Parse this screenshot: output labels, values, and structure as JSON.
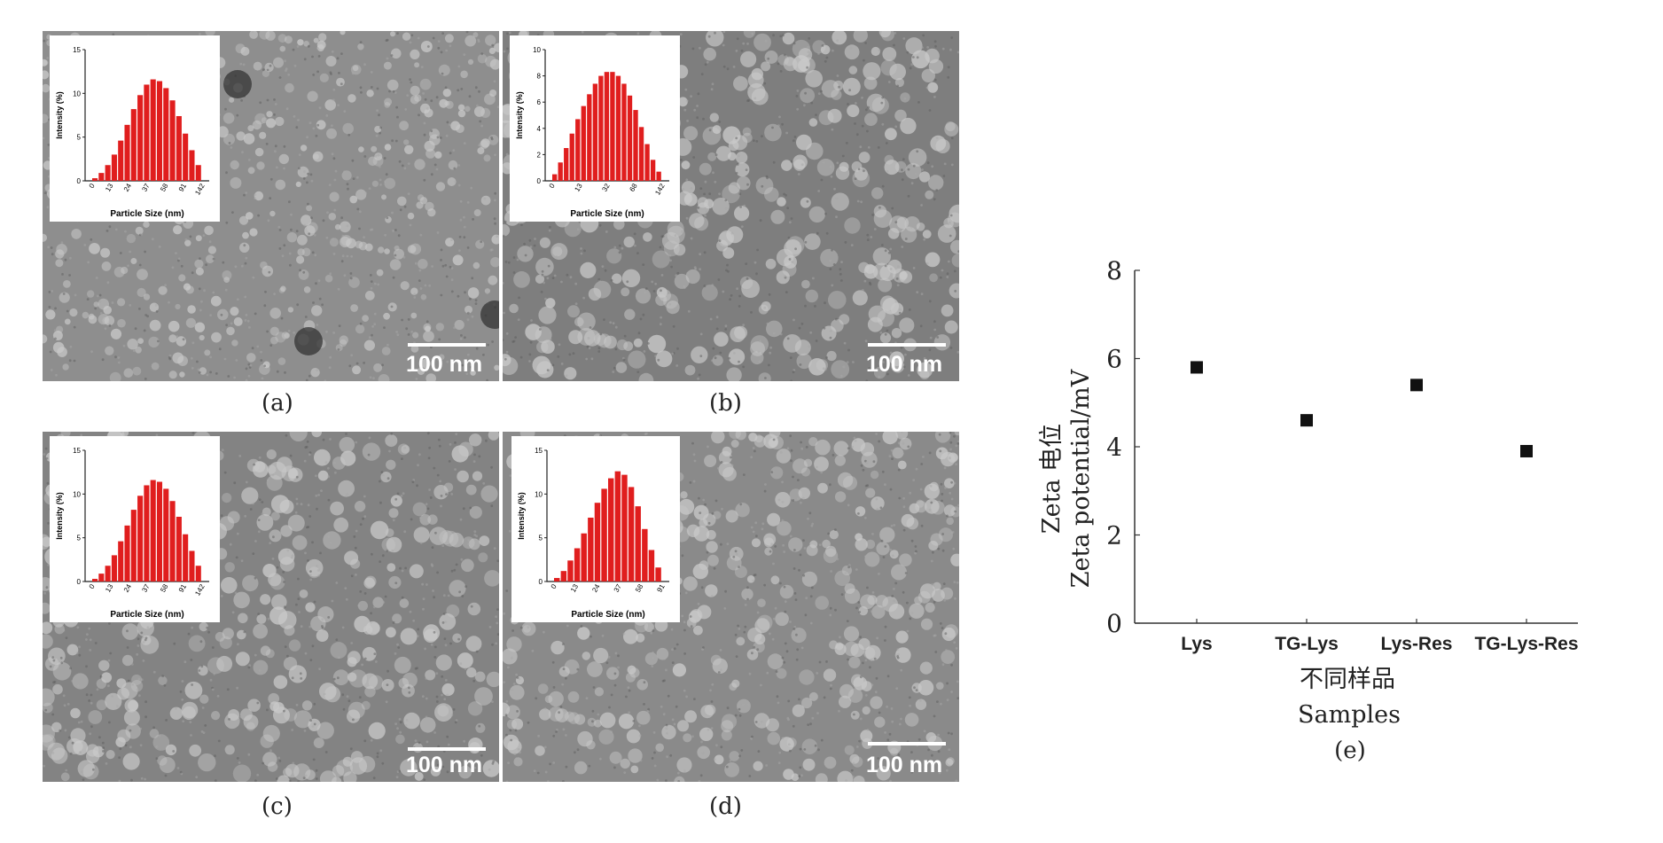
{
  "panels": [
    {
      "id": "a",
      "caption": "(a)",
      "scale_label": "100 nm",
      "inset": {
        "ylabel": "Intensity (%)",
        "xlabel": "Particle Size (nm)",
        "yticks": [
          "0",
          "5",
          "10",
          "15"
        ],
        "xticks": [
          "0",
          "13",
          "24",
          "37",
          "58",
          "91",
          "142"
        ],
        "ymax": 15,
        "values": [
          0.3,
          0.9,
          1.8,
          3.0,
          4.6,
          6.4,
          8.2,
          9.8,
          11.0,
          11.6,
          11.4,
          10.6,
          9.2,
          7.4,
          5.4,
          3.5,
          1.8
        ]
      }
    },
    {
      "id": "b",
      "caption": "(b)",
      "scale_label": "100 nm",
      "inset": {
        "ylabel": "Intensity (%)",
        "xlabel": "Particle Size (nm)",
        "yticks": [
          "0",
          "2",
          "4",
          "6",
          "8",
          "10"
        ],
        "xticks": [
          "0",
          "13",
          "32",
          "68",
          "142"
        ],
        "ymax": 10,
        "values": [
          0.5,
          1.4,
          2.5,
          3.6,
          4.7,
          5.7,
          6.6,
          7.4,
          8.0,
          8.3,
          8.3,
          8.0,
          7.4,
          6.5,
          5.4,
          4.1,
          2.8,
          1.6,
          0.7
        ]
      }
    },
    {
      "id": "c",
      "caption": "(c)",
      "scale_label": "100 nm",
      "inset": {
        "ylabel": "Intensity (%)",
        "xlabel": "Particle Size (nm)",
        "yticks": [
          "0",
          "5",
          "10",
          "15"
        ],
        "xticks": [
          "0",
          "13",
          "24",
          "37",
          "58",
          "91",
          "142"
        ],
        "ymax": 15,
        "values": [
          0.3,
          0.9,
          1.8,
          3.0,
          4.6,
          6.4,
          8.2,
          9.8,
          11.0,
          11.6,
          11.4,
          10.6,
          9.2,
          7.4,
          5.4,
          3.5,
          1.8
        ]
      }
    },
    {
      "id": "d",
      "caption": "(d)",
      "scale_label": "100 nm",
      "inset": {
        "ylabel": "Intensity (%)",
        "xlabel": "Particle Size (nm)",
        "yticks": [
          "0",
          "5",
          "10",
          "15"
        ],
        "xticks": [
          "0",
          "13",
          "24",
          "37",
          "58",
          "91"
        ],
        "ymax": 15,
        "values": [
          0.4,
          1.2,
          2.4,
          3.8,
          5.5,
          7.3,
          9.0,
          10.6,
          11.8,
          12.6,
          12.2,
          10.8,
          8.6,
          6.0,
          3.6,
          1.6
        ]
      }
    }
  ],
  "chart_data": {
    "type": "scatter",
    "categories": [
      "Lys",
      "TG-Lys",
      "Lys-Res",
      "TG-Lys-Res"
    ],
    "values": [
      5.8,
      4.6,
      5.4,
      3.9
    ],
    "ylim": [
      0,
      8
    ],
    "yticks": [
      0,
      2,
      4,
      6,
      8
    ],
    "ylabel_cn": "Zeta 电位",
    "ylabel": "Zeta  potential/mV",
    "xlabel_cn": "不同样品",
    "xlabel": "Samples",
    "caption": "(e)",
    "marker": "square",
    "grid": false
  },
  "colors": {
    "bars": "#e01e1e",
    "tem_base": "#8c8c8c",
    "tem_particle": "#c9c9c9"
  }
}
